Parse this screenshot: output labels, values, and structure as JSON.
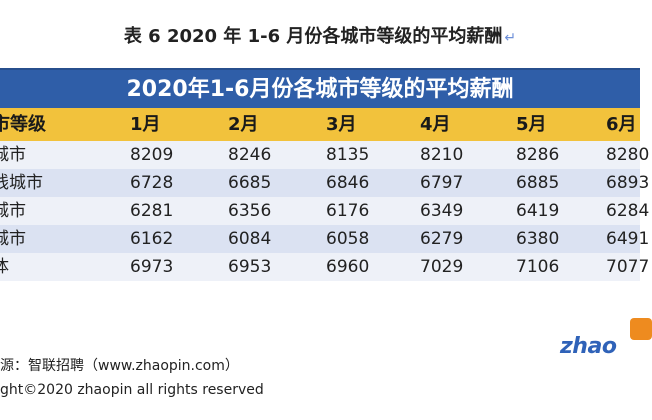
{
  "caption": "表 6 2020 年 1-6 月份各城市等级的平均薪酬",
  "table": {
    "title": "2020年1-6月份各城市等级的平均薪酬",
    "header_label": "市等级",
    "months": [
      "1月",
      "2月",
      "3月",
      "4月",
      "5月",
      "6月"
    ],
    "rows": [
      {
        "label": "城市",
        "values": [
          "8209",
          "8246",
          "8135",
          "8210",
          "8286",
          "8280"
        ]
      },
      {
        "label": "线城市",
        "values": [
          "6728",
          "6685",
          "6846",
          "6797",
          "6885",
          "6893"
        ]
      },
      {
        "label": "城市",
        "values": [
          "6281",
          "6356",
          "6176",
          "6349",
          "6419",
          "6284"
        ]
      },
      {
        "label": "城市",
        "values": [
          "6162",
          "6084",
          "6058",
          "6279",
          "6380",
          "6491"
        ]
      },
      {
        "label": "体",
        "values": [
          "6973",
          "6953",
          "6960",
          "7029",
          "7106",
          "7077"
        ]
      }
    ]
  },
  "footer": {
    "source": "源：智联招聘（www.zhaopin.com）",
    "copyright": "ght©2020 zhaopin all rights reserved"
  },
  "logo": {
    "text": "zhao",
    "colors": {
      "text": "#2f62b8",
      "mark": "#ee8b1f"
    }
  }
}
